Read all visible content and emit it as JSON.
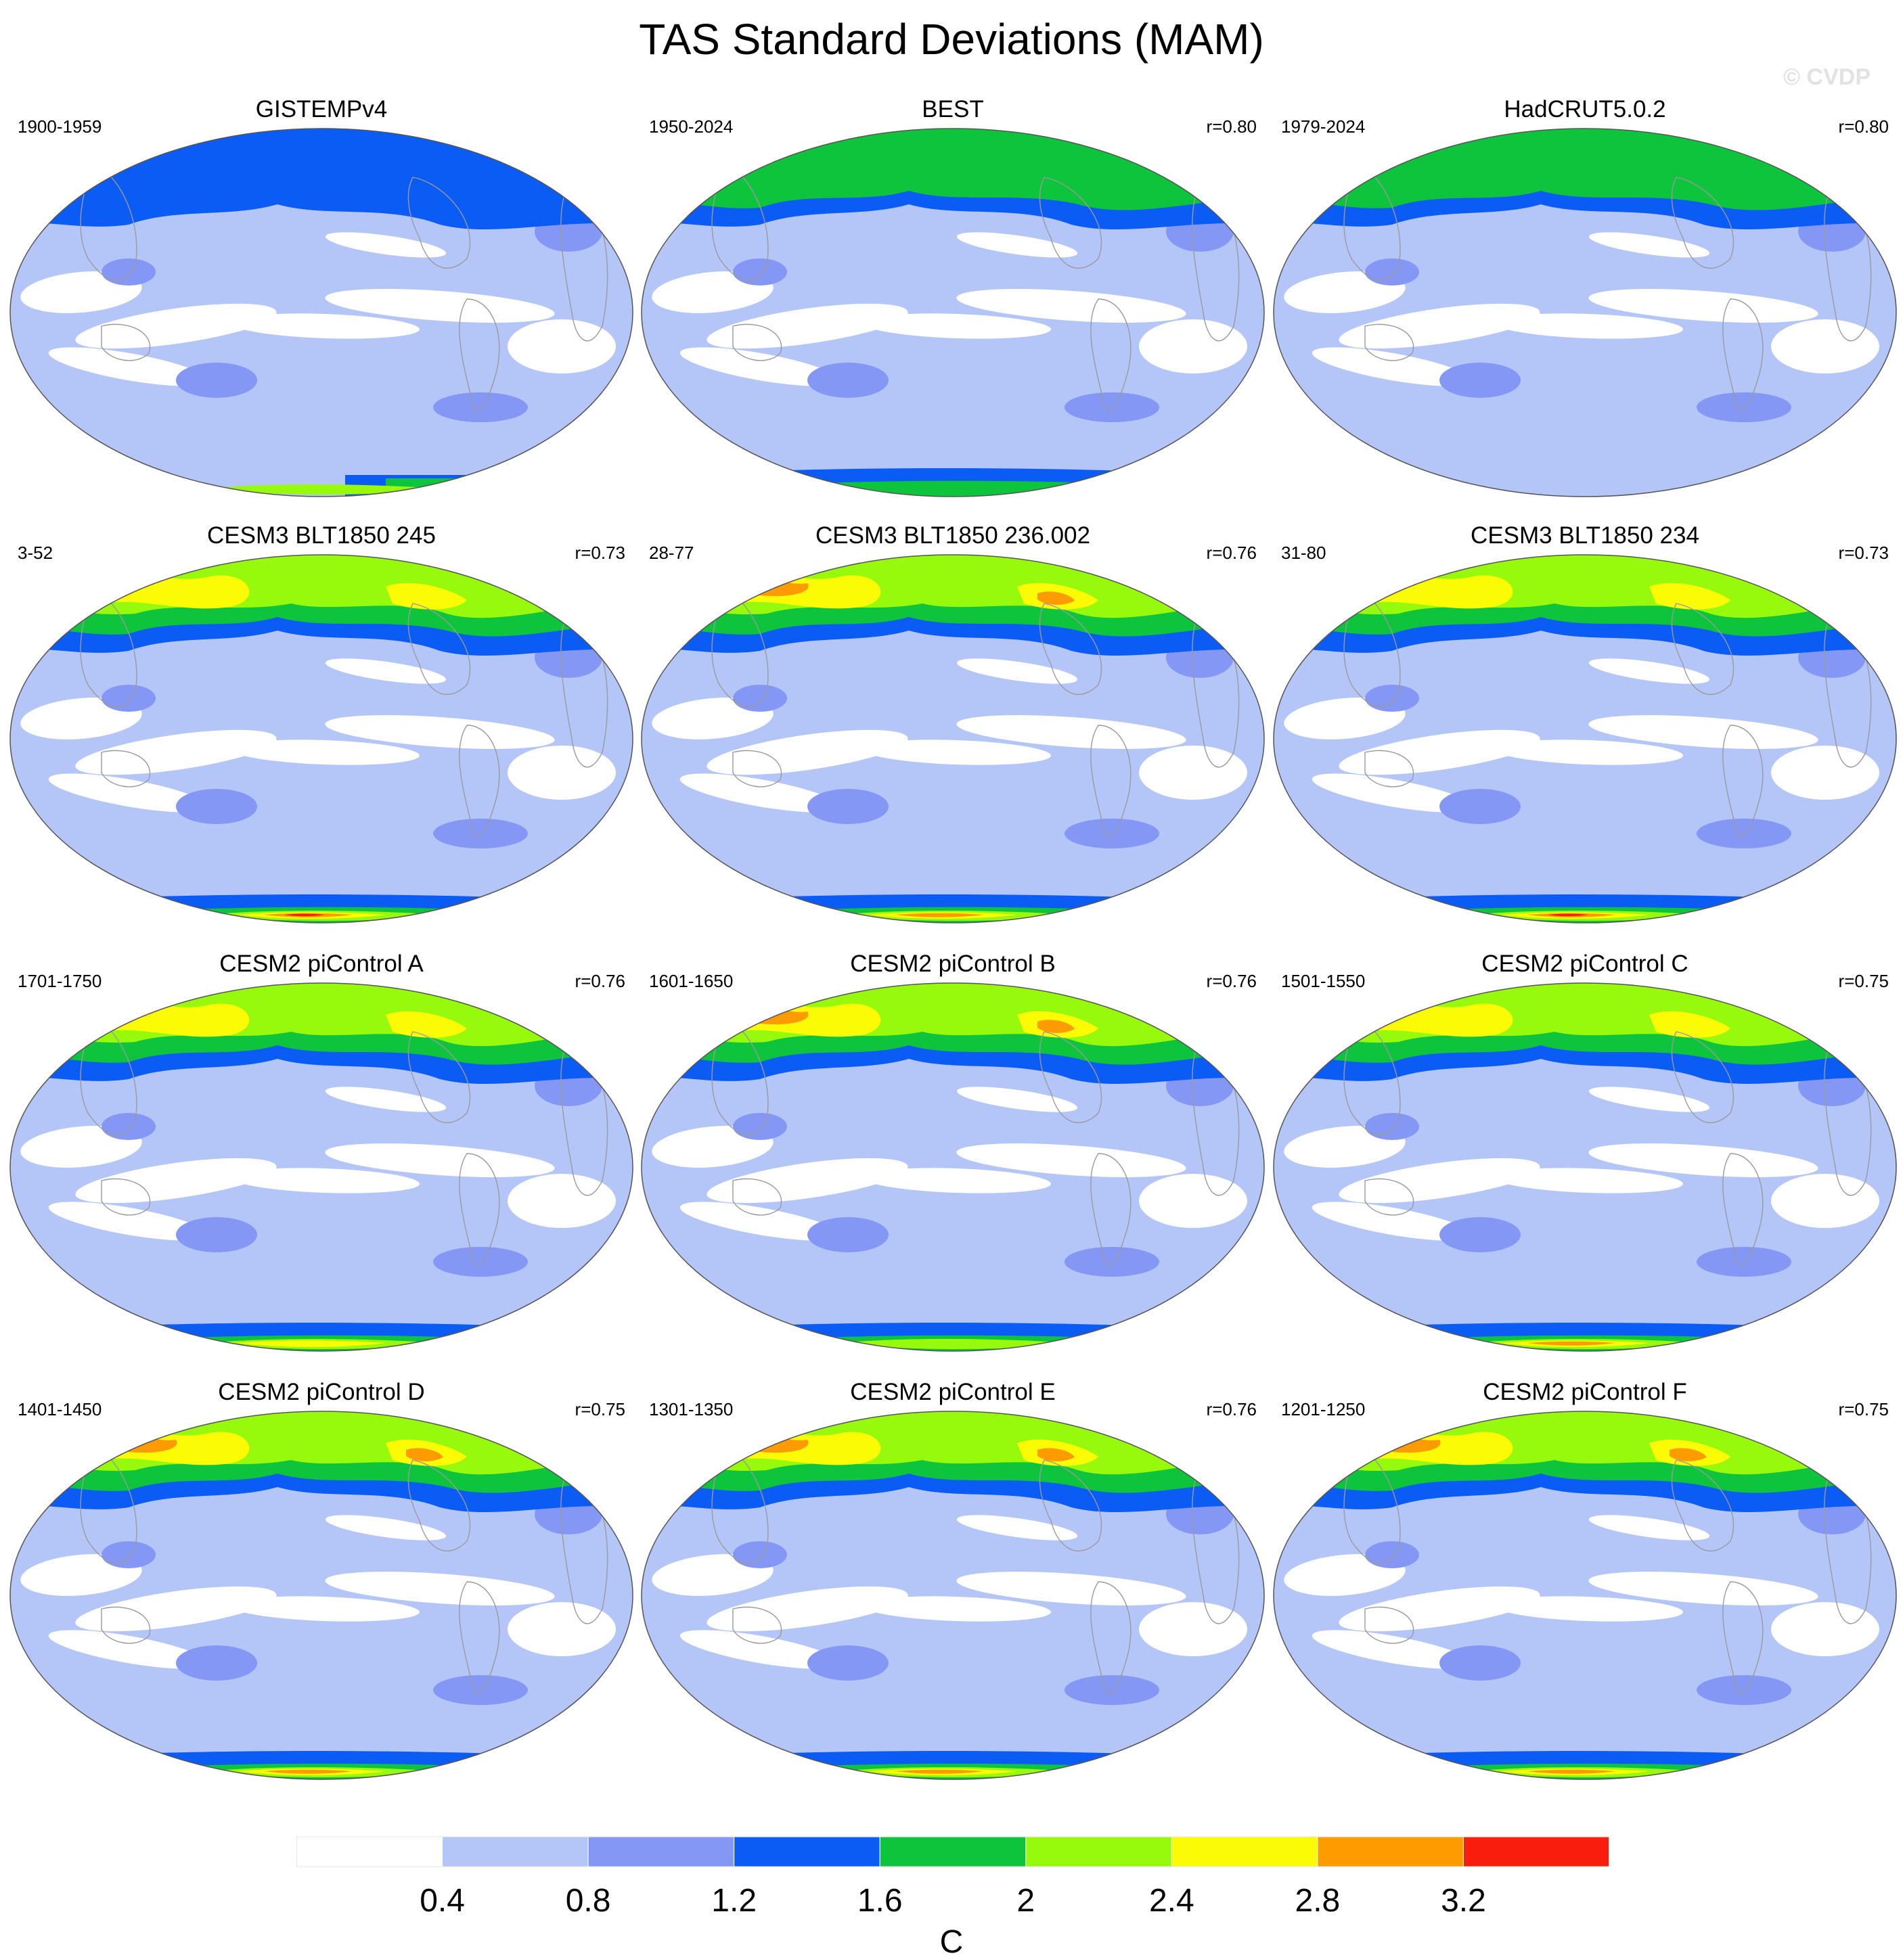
{
  "title": "TAS Standard Deviations (MAM)",
  "watermark": "© CVDP",
  "colorbar": {
    "unit": "C",
    "ticks": [
      "0.4",
      "0.8",
      "1.2",
      "1.6",
      "2",
      "2.4",
      "2.8",
      "3.2"
    ],
    "levels": [
      0.4,
      0.8,
      1.2,
      1.6,
      2.0,
      2.4,
      2.8,
      3.2
    ],
    "colors": [
      "#ffffff",
      "#b4c6f8",
      "#8597f4",
      "#0a5cf5",
      "#0ec43c",
      "#97f90b",
      "#fcfb06",
      "#fe9b00",
      "#f81d0c"
    ]
  },
  "panels": [
    {
      "title": "GISTEMPv4",
      "period": "1900-1959",
      "r": "",
      "nh": 1.2,
      "sh": 1.2,
      "ant": 2.2,
      "ant_mode": "partial"
    },
    {
      "title": "BEST",
      "period": "1950-2024",
      "r": "r=0.80",
      "nh": 1.9,
      "sh": 1.5,
      "ant": 1.9,
      "ant_mode": "full"
    },
    {
      "title": "HadCRUT5.0.2",
      "period": "1979-2024",
      "r": "r=0.80",
      "nh": 1.8,
      "sh": 1.0,
      "ant": 0.7,
      "ant_mode": "low"
    },
    {
      "title": "CESM3 BLT1850 245",
      "period": "3-52",
      "r": "r=0.73",
      "nh": 2.6,
      "sh": 3.3,
      "ant": 3.3,
      "ant_mode": "full"
    },
    {
      "title": "CESM3 BLT1850 236.002",
      "period": "28-77",
      "r": "r=0.76",
      "nh": 2.9,
      "sh": 3.0,
      "ant": 3.0,
      "ant_mode": "full"
    },
    {
      "title": "CESM3 BLT1850 234",
      "period": "31-80",
      "r": "r=0.73",
      "nh": 2.7,
      "sh": 3.3,
      "ant": 3.3,
      "ant_mode": "full"
    },
    {
      "title": "CESM2 piControl A",
      "period": "1701-1750",
      "r": "r=0.76",
      "nh": 2.6,
      "sh": 2.5,
      "ant": 2.5,
      "ant_mode": "full"
    },
    {
      "title": "CESM2 piControl B",
      "period": "1601-1650",
      "r": "r=0.76",
      "nh": 2.9,
      "sh": 2.3,
      "ant": 2.3,
      "ant_mode": "full"
    },
    {
      "title": "CESM2 piControl C",
      "period": "1501-1550",
      "r": "r=0.75",
      "nh": 2.6,
      "sh": 3.0,
      "ant": 3.0,
      "ant_mode": "full"
    },
    {
      "title": "CESM2 piControl D",
      "period": "1401-1450",
      "r": "r=0.75",
      "nh": 3.3,
      "sh": 2.9,
      "ant": 2.9,
      "ant_mode": "full"
    },
    {
      "title": "CESM2 piControl E",
      "period": "1301-1350",
      "r": "r=0.76",
      "nh": 2.9,
      "sh": 2.9,
      "ant": 2.9,
      "ant_mode": "full"
    },
    {
      "title": "CESM2 piControl F",
      "period": "1201-1250",
      "r": "r=0.75",
      "nh": 2.9,
      "sh": 3.0,
      "ant": 3.0,
      "ant_mode": "full"
    }
  ]
}
